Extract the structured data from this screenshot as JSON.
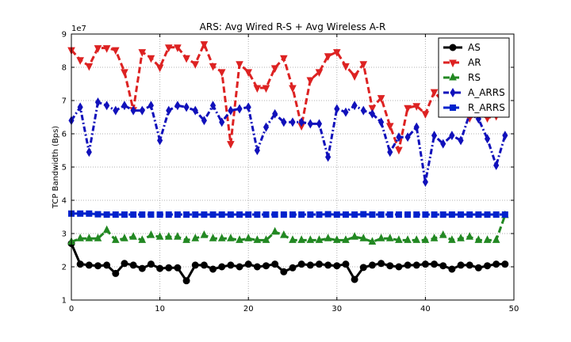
{
  "chart_data": {
    "type": "line",
    "title": "ARS: Avg Wired R-S + Avg Wireless A-R",
    "xlabel": "",
    "ylabel": "TCP Bandwidth (Bps)",
    "offset_label": "1e7",
    "xlim": [
      0,
      50
    ],
    "ylim": [
      1,
      9
    ],
    "xticks": [
      0,
      10,
      20,
      30,
      40,
      50
    ],
    "yticks": [
      1,
      2,
      3,
      4,
      5,
      6,
      7,
      8,
      9
    ],
    "grid": true,
    "legend_position": "top-right",
    "x": [
      0,
      1,
      2,
      3,
      4,
      5,
      6,
      7,
      8,
      9,
      10,
      11,
      12,
      13,
      14,
      15,
      16,
      17,
      18,
      19,
      20,
      21,
      22,
      23,
      24,
      25,
      26,
      27,
      28,
      29,
      30,
      31,
      32,
      33,
      34,
      35,
      36,
      37,
      38,
      39,
      40,
      41,
      42,
      43,
      44,
      45,
      46,
      47,
      48,
      49
    ],
    "series": [
      {
        "name": "AS",
        "color": "#000000",
        "marker": "circle",
        "linestyle": "solid",
        "values": [
          2.7,
          2.08,
          2.05,
          2.03,
          2.05,
          1.8,
          2.1,
          2.05,
          1.95,
          2.08,
          1.95,
          1.97,
          1.97,
          1.58,
          2.05,
          2.05,
          1.93,
          2.0,
          2.05,
          2.0,
          2.08,
          2.0,
          2.03,
          2.08,
          1.85,
          1.97,
          2.08,
          2.05,
          2.08,
          2.05,
          2.03,
          2.08,
          1.62,
          1.98,
          2.05,
          2.1,
          2.03,
          2.0,
          2.05,
          2.05,
          2.08,
          2.08,
          2.03,
          1.93,
          2.05,
          2.05,
          1.97,
          2.03,
          2.08,
          2.08
        ]
      },
      {
        "name": "AR",
        "color": "#dd2222",
        "marker": "triangle-down",
        "linestyle": "dashed",
        "values": [
          8.52,
          8.22,
          8.04,
          8.58,
          8.58,
          8.52,
          7.86,
          6.72,
          8.46,
          8.28,
          8.0,
          8.6,
          8.6,
          8.28,
          8.1,
          8.7,
          8.04,
          7.86,
          5.7,
          8.1,
          7.86,
          7.38,
          7.38,
          7.98,
          8.28,
          7.38,
          6.24,
          7.62,
          7.86,
          8.34,
          8.46,
          8.04,
          7.74,
          8.1,
          6.78,
          7.08,
          6.24,
          5.52,
          6.78,
          6.84,
          6.6,
          7.26,
          6.96,
          6.96,
          7.08,
          6.48,
          6.6,
          6.48,
          6.54,
          6.78
        ]
      },
      {
        "name": "RS",
        "color": "#228822",
        "marker": "triangle-up",
        "linestyle": "dashed",
        "values": [
          2.75,
          2.85,
          2.85,
          2.85,
          3.1,
          2.8,
          2.85,
          2.9,
          2.8,
          2.95,
          2.9,
          2.9,
          2.9,
          2.8,
          2.85,
          2.95,
          2.85,
          2.85,
          2.85,
          2.8,
          2.85,
          2.8,
          2.8,
          3.05,
          2.95,
          2.8,
          2.8,
          2.8,
          2.8,
          2.85,
          2.8,
          2.8,
          2.9,
          2.85,
          2.75,
          2.85,
          2.85,
          2.8,
          2.8,
          2.8,
          2.8,
          2.85,
          2.95,
          2.8,
          2.85,
          2.9,
          2.8,
          2.8,
          2.8,
          3.55
        ]
      },
      {
        "name": "A_ARRS",
        "color": "#1111bb",
        "marker": "diamond",
        "linestyle": "dashdot",
        "values": [
          6.4,
          6.8,
          5.45,
          6.95,
          6.85,
          6.7,
          6.85,
          6.7,
          6.7,
          6.85,
          5.8,
          6.7,
          6.85,
          6.8,
          6.7,
          6.4,
          6.85,
          6.35,
          6.7,
          6.75,
          6.8,
          5.5,
          6.2,
          6.6,
          6.35,
          6.35,
          6.35,
          6.3,
          6.3,
          5.3,
          6.75,
          6.65,
          6.85,
          6.7,
          6.6,
          6.35,
          5.45,
          5.9,
          5.9,
          6.2,
          4.55,
          5.95,
          5.7,
          5.95,
          5.8,
          6.6,
          6.45,
          5.85,
          5.05,
          5.95
        ]
      },
      {
        "name": "R_ARRS",
        "color": "#0022cc",
        "marker": "square",
        "linestyle": "dashed",
        "values": [
          3.6,
          3.6,
          3.6,
          3.58,
          3.57,
          3.57,
          3.57,
          3.57,
          3.57,
          3.57,
          3.57,
          3.57,
          3.57,
          3.57,
          3.57,
          3.57,
          3.57,
          3.57,
          3.57,
          3.57,
          3.57,
          3.57,
          3.57,
          3.57,
          3.57,
          3.57,
          3.57,
          3.57,
          3.57,
          3.58,
          3.57,
          3.57,
          3.57,
          3.58,
          3.57,
          3.57,
          3.57,
          3.57,
          3.57,
          3.57,
          3.57,
          3.57,
          3.57,
          3.57,
          3.57,
          3.57,
          3.57,
          3.57,
          3.57,
          3.57
        ]
      }
    ]
  }
}
